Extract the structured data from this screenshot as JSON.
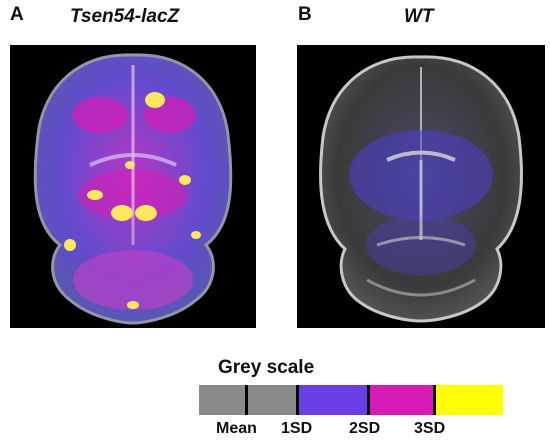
{
  "panels": [
    {
      "letter": "A",
      "title": "Tsen54-lacZ"
    },
    {
      "letter": "B",
      "title": "WT"
    }
  ],
  "legend": {
    "title": "Grey scale",
    "labels": [
      "Mean",
      "1SD",
      "2SD",
      "3SD"
    ],
    "colors": {
      "grey": "#8a8a8a",
      "purple": "#6b3ee6",
      "magenta": "#d81bb5",
      "yellow": "#ffff00",
      "tick": "#000000"
    }
  }
}
